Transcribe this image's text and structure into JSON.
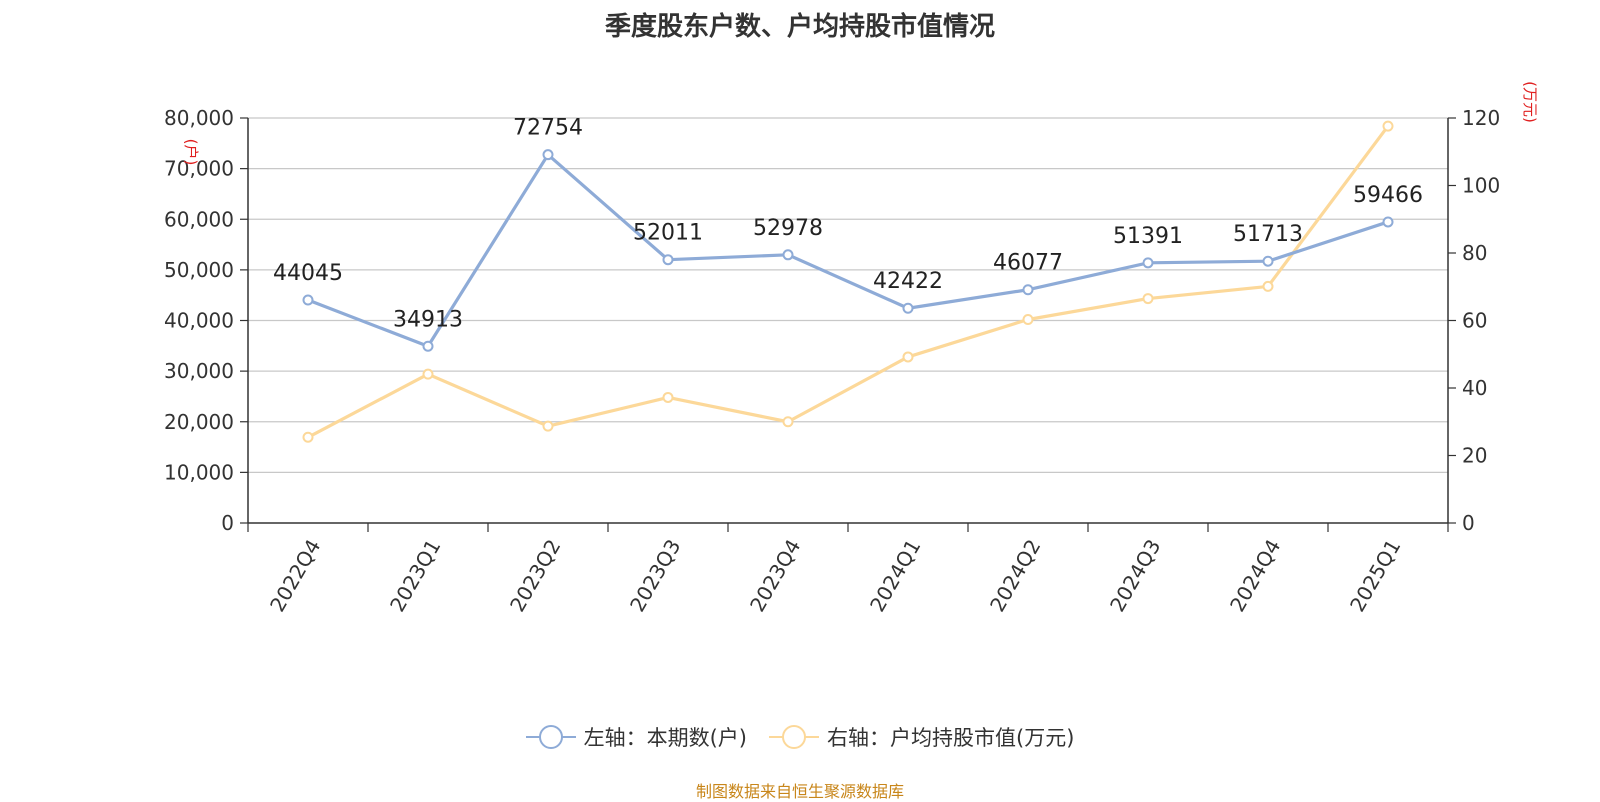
{
  "title": "季度股东户数、户均持股市值情况",
  "source": "制图数据来自恒生聚源数据库",
  "chart_data": {
    "type": "line",
    "categories": [
      "2022Q4",
      "2023Q1",
      "2023Q2",
      "2023Q3",
      "2023Q4",
      "2024Q1",
      "2024Q2",
      "2024Q3",
      "2024Q4",
      "2025Q1"
    ],
    "left_axis": {
      "unit_label": "(户)",
      "ylim": [
        0,
        80000
      ],
      "ticks": [
        "0",
        "10,000",
        "20,000",
        "30,000",
        "40,000",
        "50,000",
        "60,000",
        "70,000",
        "80,000"
      ]
    },
    "right_axis": {
      "unit_label": "(万元)",
      "ylim": [
        0,
        120
      ],
      "ticks": [
        "0",
        "20",
        "40",
        "60",
        "80",
        "100",
        "120"
      ]
    },
    "series": [
      {
        "name": "左轴：本期数(户)",
        "axis": "left",
        "color": "#8eabd7",
        "values": [
          44045,
          34913,
          72754,
          52011,
          52978,
          42422,
          46077,
          51391,
          51713,
          59466
        ],
        "data_labels": [
          "44045",
          "34913",
          "72754",
          "52011",
          "52978",
          "42422",
          "46077",
          "51391",
          "51713",
          "59466"
        ]
      },
      {
        "name": "右轴：户均持股市值(万元)",
        "axis": "right",
        "color": "#fcd899",
        "values": [
          25.4,
          44.1,
          28.7,
          37.2,
          30.0,
          49.2,
          60.3,
          66.5,
          70.1,
          117.6
        ]
      }
    ],
    "grid": true,
    "legend_position": "bottom"
  }
}
